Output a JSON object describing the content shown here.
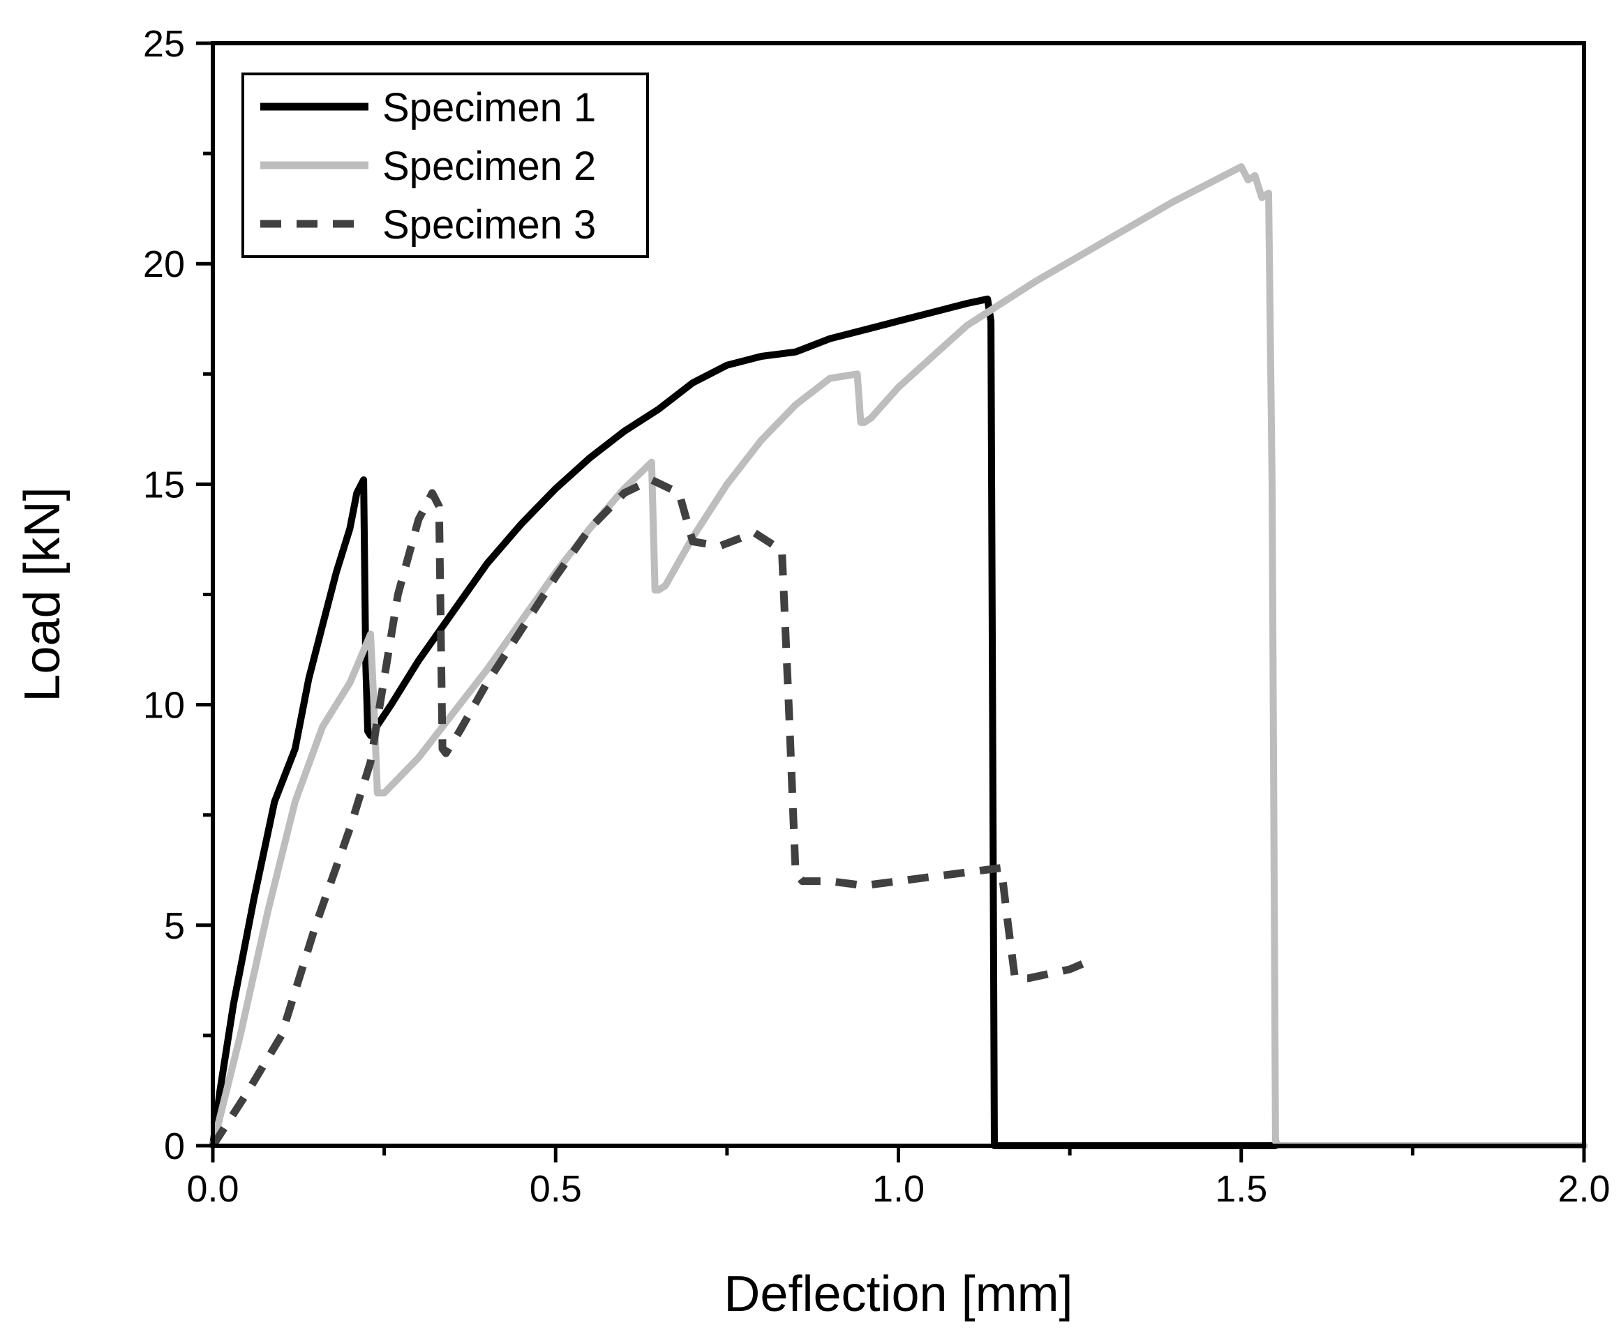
{
  "chart_data": {
    "type": "line",
    "title": "",
    "xlabel": "Deflection [mm]",
    "ylabel": "Load [kN]",
    "xlim": [
      0.0,
      2.0
    ],
    "ylim": [
      0,
      25
    ],
    "xticks": [
      {
        "value": 0.0,
        "label": "0.0"
      },
      {
        "value": 0.5,
        "label": "0.5"
      },
      {
        "value": 1.0,
        "label": "1.0"
      },
      {
        "value": 1.5,
        "label": "1.5"
      },
      {
        "value": 2.0,
        "label": "2.0"
      }
    ],
    "yticks": [
      {
        "value": 0,
        "label": "0"
      },
      {
        "value": 5,
        "label": "5"
      },
      {
        "value": 10,
        "label": "10"
      },
      {
        "value": 15,
        "label": "15"
      },
      {
        "value": 20,
        "label": "20"
      },
      {
        "value": 25,
        "label": "25"
      }
    ],
    "grid": false,
    "legend_position": "top-left",
    "series": [
      {
        "name": "Specimen 1",
        "color": "#000000",
        "style": "solid",
        "x": [
          0.0,
          0.01,
          0.03,
          0.06,
          0.09,
          0.12,
          0.14,
          0.16,
          0.18,
          0.2,
          0.21,
          0.22,
          0.223,
          0.226,
          0.23,
          0.26,
          0.3,
          0.35,
          0.4,
          0.45,
          0.5,
          0.55,
          0.6,
          0.65,
          0.7,
          0.75,
          0.8,
          0.85,
          0.9,
          0.95,
          1.0,
          1.05,
          1.1,
          1.13,
          1.135,
          1.14,
          1.145,
          1.2,
          1.5,
          2.0
        ],
        "y": [
          0.0,
          1.2,
          3.2,
          5.6,
          7.8,
          9.0,
          10.6,
          11.8,
          13.0,
          14.0,
          14.8,
          15.1,
          11.0,
          9.4,
          9.3,
          10.0,
          11.0,
          12.1,
          13.2,
          14.1,
          14.9,
          15.6,
          16.2,
          16.7,
          17.3,
          17.7,
          17.9,
          18.0,
          18.3,
          18.5,
          18.7,
          18.9,
          19.1,
          19.2,
          18.7,
          0.0,
          0.0,
          0.0,
          0.0,
          0.0
        ]
      },
      {
        "name": "Specimen 2",
        "color": "#bdbdbd",
        "style": "solid",
        "x": [
          0.0,
          0.04,
          0.08,
          0.12,
          0.16,
          0.2,
          0.23,
          0.235,
          0.24,
          0.25,
          0.3,
          0.35,
          0.4,
          0.45,
          0.5,
          0.55,
          0.6,
          0.64,
          0.645,
          0.65,
          0.66,
          0.7,
          0.75,
          0.8,
          0.85,
          0.9,
          0.94,
          0.945,
          0.95,
          0.96,
          1.0,
          1.05,
          1.1,
          1.2,
          1.3,
          1.4,
          1.5,
          1.51,
          1.52,
          1.53,
          1.54,
          1.545,
          1.55,
          1.555,
          1.6,
          2.0
        ],
        "y": [
          0.0,
          2.5,
          5.3,
          7.8,
          9.5,
          10.5,
          11.6,
          10.0,
          8.0,
          8.0,
          8.8,
          9.8,
          10.8,
          11.9,
          13.0,
          14.0,
          14.9,
          15.5,
          12.6,
          12.6,
          12.7,
          13.8,
          15.0,
          16.0,
          16.8,
          17.4,
          17.5,
          16.4,
          16.4,
          16.5,
          17.2,
          17.9,
          18.6,
          19.6,
          20.5,
          21.4,
          22.2,
          21.9,
          22.0,
          21.5,
          21.6,
          15.0,
          0.1,
          0.0,
          0.0,
          0.0
        ]
      },
      {
        "name": "Specimen 3",
        "color": "#404040",
        "style": "dashed",
        "x": [
          0.0,
          0.05,
          0.1,
          0.15,
          0.2,
          0.23,
          0.25,
          0.27,
          0.3,
          0.32,
          0.33,
          0.335,
          0.34,
          0.36,
          0.4,
          0.45,
          0.5,
          0.55,
          0.6,
          0.64,
          0.68,
          0.7,
          0.74,
          0.79,
          0.83,
          0.84,
          0.85,
          0.86,
          0.9,
          0.95,
          1.0,
          1.05,
          1.1,
          1.15,
          1.16,
          1.17,
          1.19,
          1.22,
          1.25,
          1.28
        ],
        "y": [
          0.0,
          1.2,
          2.5,
          5.0,
          7.2,
          8.7,
          10.6,
          12.5,
          14.2,
          14.8,
          14.5,
          9.0,
          8.9,
          9.4,
          10.5,
          11.7,
          12.9,
          14.0,
          14.8,
          15.1,
          14.8,
          13.7,
          13.6,
          13.9,
          13.5,
          10.0,
          6.2,
          6.0,
          6.0,
          5.9,
          6.0,
          6.1,
          6.2,
          6.3,
          5.0,
          3.8,
          3.8,
          3.9,
          4.0,
          4.2
        ]
      }
    ]
  }
}
